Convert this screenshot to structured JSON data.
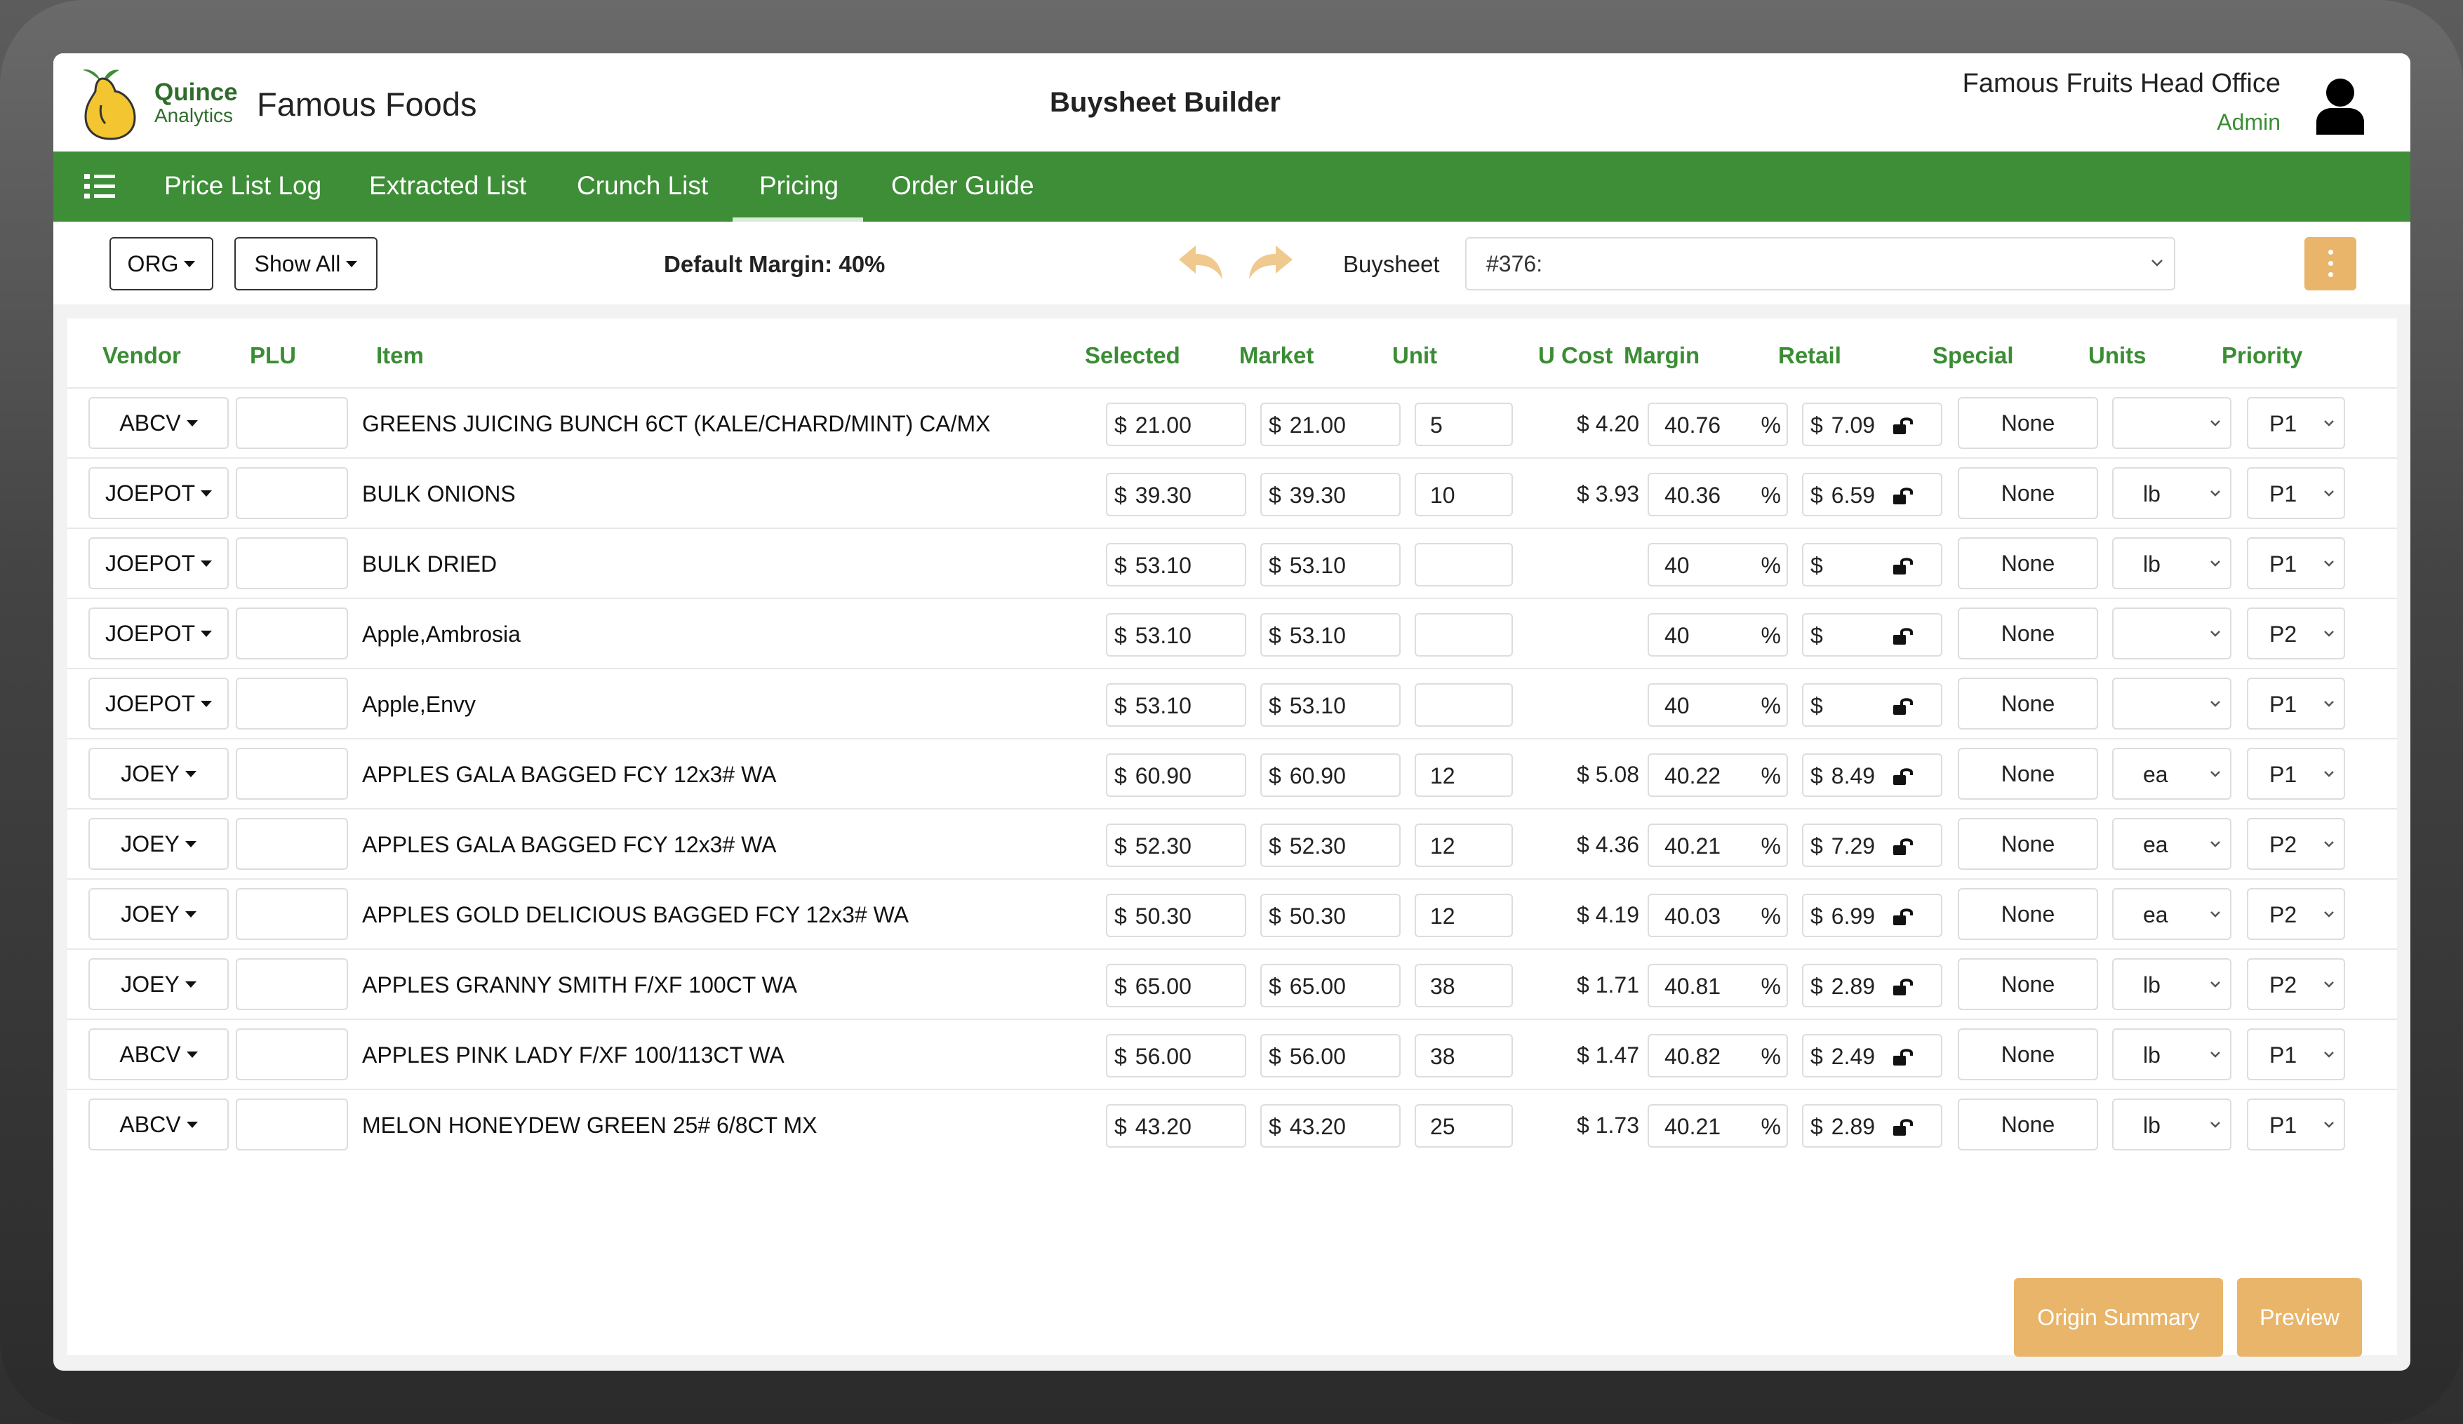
{
  "header": {
    "logo_line1": "Quince",
    "logo_line2": "Analytics",
    "company": "Famous Foods",
    "page_title": "Buysheet Builder",
    "org_name": "Famous Fruits Head Office",
    "role": "Admin"
  },
  "nav": {
    "items": [
      "Price List Log",
      "Extracted List",
      "Crunch List",
      "Pricing",
      "Order Guide"
    ],
    "active": "Pricing"
  },
  "toolbar": {
    "org_label": "ORG",
    "show_all_label": "Show All",
    "default_margin": "Default Margin: 40%",
    "buysheet_label": "Buysheet",
    "buysheet_value": "#376:"
  },
  "table": {
    "headers": {
      "vendor": "Vendor",
      "plu": "PLU",
      "item": "Item",
      "selected": "Selected",
      "market": "Market",
      "unit": "Unit",
      "ucost": "U Cost",
      "margin": "Margin",
      "retail": "Retail",
      "special": "Special",
      "units": "Units",
      "priority": "Priority"
    },
    "currency": "$",
    "percent": "%",
    "rows": [
      {
        "vendor": "ABCV",
        "plu": "",
        "item": "GREENS JUICING BUNCH 6CT (KALE/CHARD/MINT) CA/MX",
        "selected": "21.00",
        "market": "21.00",
        "unit": "5",
        "ucost": "$ 4.20",
        "margin": "40.76",
        "retail": "7.09",
        "special": "None",
        "units": "",
        "priority": "P1"
      },
      {
        "vendor": "JOEPOT",
        "plu": "",
        "item": "BULK ONIONS",
        "selected": "39.30",
        "market": "39.30",
        "unit": "10",
        "ucost": "$ 3.93",
        "margin": "40.36",
        "retail": "6.59",
        "special": "None",
        "units": "lb",
        "priority": "P1"
      },
      {
        "vendor": "JOEPOT",
        "plu": "",
        "item": "BULK DRIED",
        "selected": "53.10",
        "market": "53.10",
        "unit": "",
        "ucost": "",
        "margin": "40",
        "retail": "",
        "special": "None",
        "units": "lb",
        "priority": "P1"
      },
      {
        "vendor": "JOEPOT",
        "plu": "",
        "item": "Apple,Ambrosia",
        "selected": "53.10",
        "market": "53.10",
        "unit": "",
        "ucost": "",
        "margin": "40",
        "retail": "",
        "special": "None",
        "units": "",
        "priority": "P2"
      },
      {
        "vendor": "JOEPOT",
        "plu": "",
        "item": "Apple,Envy",
        "selected": "53.10",
        "market": "53.10",
        "unit": "",
        "ucost": "",
        "margin": "40",
        "retail": "",
        "special": "None",
        "units": "",
        "priority": "P1"
      },
      {
        "vendor": "JOEY",
        "plu": "",
        "item": "APPLES GALA BAGGED FCY 12x3# WA",
        "selected": "60.90",
        "market": "60.90",
        "unit": "12",
        "ucost": "$ 5.08",
        "margin": "40.22",
        "retail": "8.49",
        "special": "None",
        "units": "ea",
        "priority": "P1"
      },
      {
        "vendor": "JOEY",
        "plu": "",
        "item": "APPLES GALA BAGGED FCY 12x3# WA",
        "selected": "52.30",
        "market": "52.30",
        "unit": "12",
        "ucost": "$ 4.36",
        "margin": "40.21",
        "retail": "7.29",
        "special": "None",
        "units": "ea",
        "priority": "P2"
      },
      {
        "vendor": "JOEY",
        "plu": "",
        "item": "APPLES GOLD DELICIOUS BAGGED FCY 12x3# WA",
        "selected": "50.30",
        "market": "50.30",
        "unit": "12",
        "ucost": "$ 4.19",
        "margin": "40.03",
        "retail": "6.99",
        "special": "None",
        "units": "ea",
        "priority": "P2"
      },
      {
        "vendor": "JOEY",
        "plu": "",
        "item": "APPLES GRANNY SMITH F/XF 100CT WA",
        "selected": "65.00",
        "market": "65.00",
        "unit": "38",
        "ucost": "$ 1.71",
        "margin": "40.81",
        "retail": "2.89",
        "special": "None",
        "units": "lb",
        "priority": "P2"
      },
      {
        "vendor": "ABCV",
        "plu": "",
        "item": "APPLES PINK LADY F/XF 100/113CT WA",
        "selected": "56.00",
        "market": "56.00",
        "unit": "38",
        "ucost": "$ 1.47",
        "margin": "40.82",
        "retail": "2.49",
        "special": "None",
        "units": "lb",
        "priority": "P1"
      },
      {
        "vendor": "ABCV",
        "plu": "",
        "item": "MELON HONEYDEW GREEN 25# 6/8CT MX",
        "selected": "43.20",
        "market": "43.20",
        "unit": "25",
        "ucost": "$ 1.73",
        "margin": "40.21",
        "retail": "2.89",
        "special": "None",
        "units": "lb",
        "priority": "P1"
      }
    ]
  },
  "footer": {
    "origin_summary_label": "Origin Summary",
    "preview_label": "Preview"
  },
  "colors": {
    "brand_green": "#3e8e38",
    "header_text_green": "#3a8d34",
    "accent_orange": "#e8b56a"
  },
  "icons": [
    "quince-logo-icon",
    "user-avatar-icon",
    "list-menu-icon",
    "undo-icon",
    "redo-icon",
    "kebab-menu-icon",
    "lock-open-icon",
    "chevron-down-icon",
    "caret-down-icon"
  ]
}
